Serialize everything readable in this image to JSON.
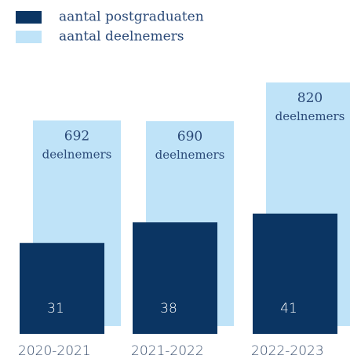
{
  "chart_data": {
    "type": "bar",
    "categories": [
      "2020-2021",
      "2021-2022",
      "2022-2023"
    ],
    "series": [
      {
        "name": "aantal postgraduaten",
        "color": "#0b3563",
        "values": [
          31,
          38,
          41
        ],
        "axis": "y2"
      },
      {
        "name": "aantal deelnemers",
        "color": "#bfe3f8",
        "values": [
          692,
          690,
          820
        ],
        "value_labels": [
          "692 deelnemers",
          "690 deelnemers",
          "820 deelnemers"
        ]
      }
    ],
    "ylim": [
      0,
      820
    ],
    "y2lim": [
      0,
      83
    ]
  }
}
